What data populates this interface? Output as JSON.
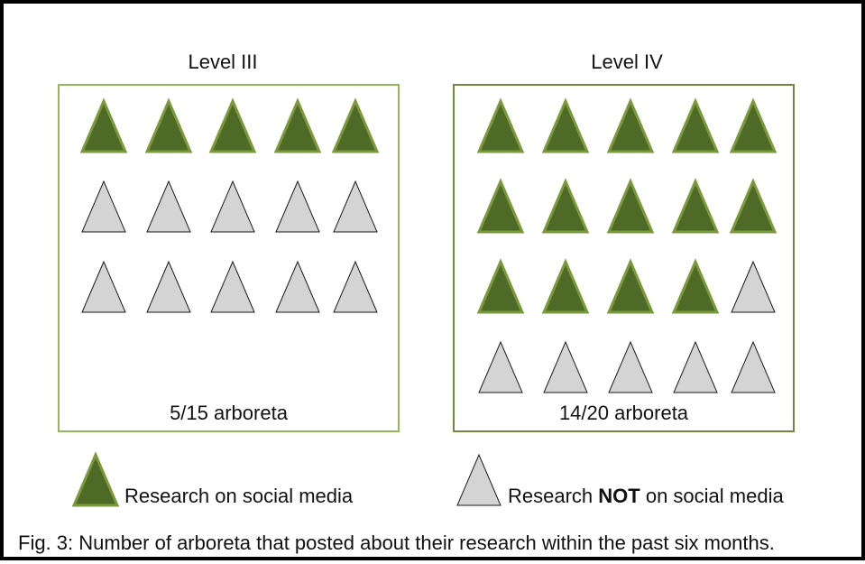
{
  "colors": {
    "research_fill": "#4e6a26",
    "research_stroke": "#7a9a3c",
    "not_fill": "#d4d4d4",
    "not_stroke": "#1a1a1a",
    "panel_border_level3": "#93b85a",
    "panel_border_level4": "#6e8b3d"
  },
  "panels": [
    {
      "title": "Level III",
      "caption": "5/15 arboreta",
      "research_count": 5,
      "total": 15
    },
    {
      "title": "Level IV",
      "caption": "14/20 arboreta",
      "research_count": 14,
      "total": 20
    }
  ],
  "legend": {
    "research_label": "Research on social media",
    "not_prefix": "Research ",
    "not_bold": "NOT",
    "not_suffix": " on social media"
  },
  "figure_caption": "Fig. 3: Number of arboreta that posted about their research within the past six months."
}
